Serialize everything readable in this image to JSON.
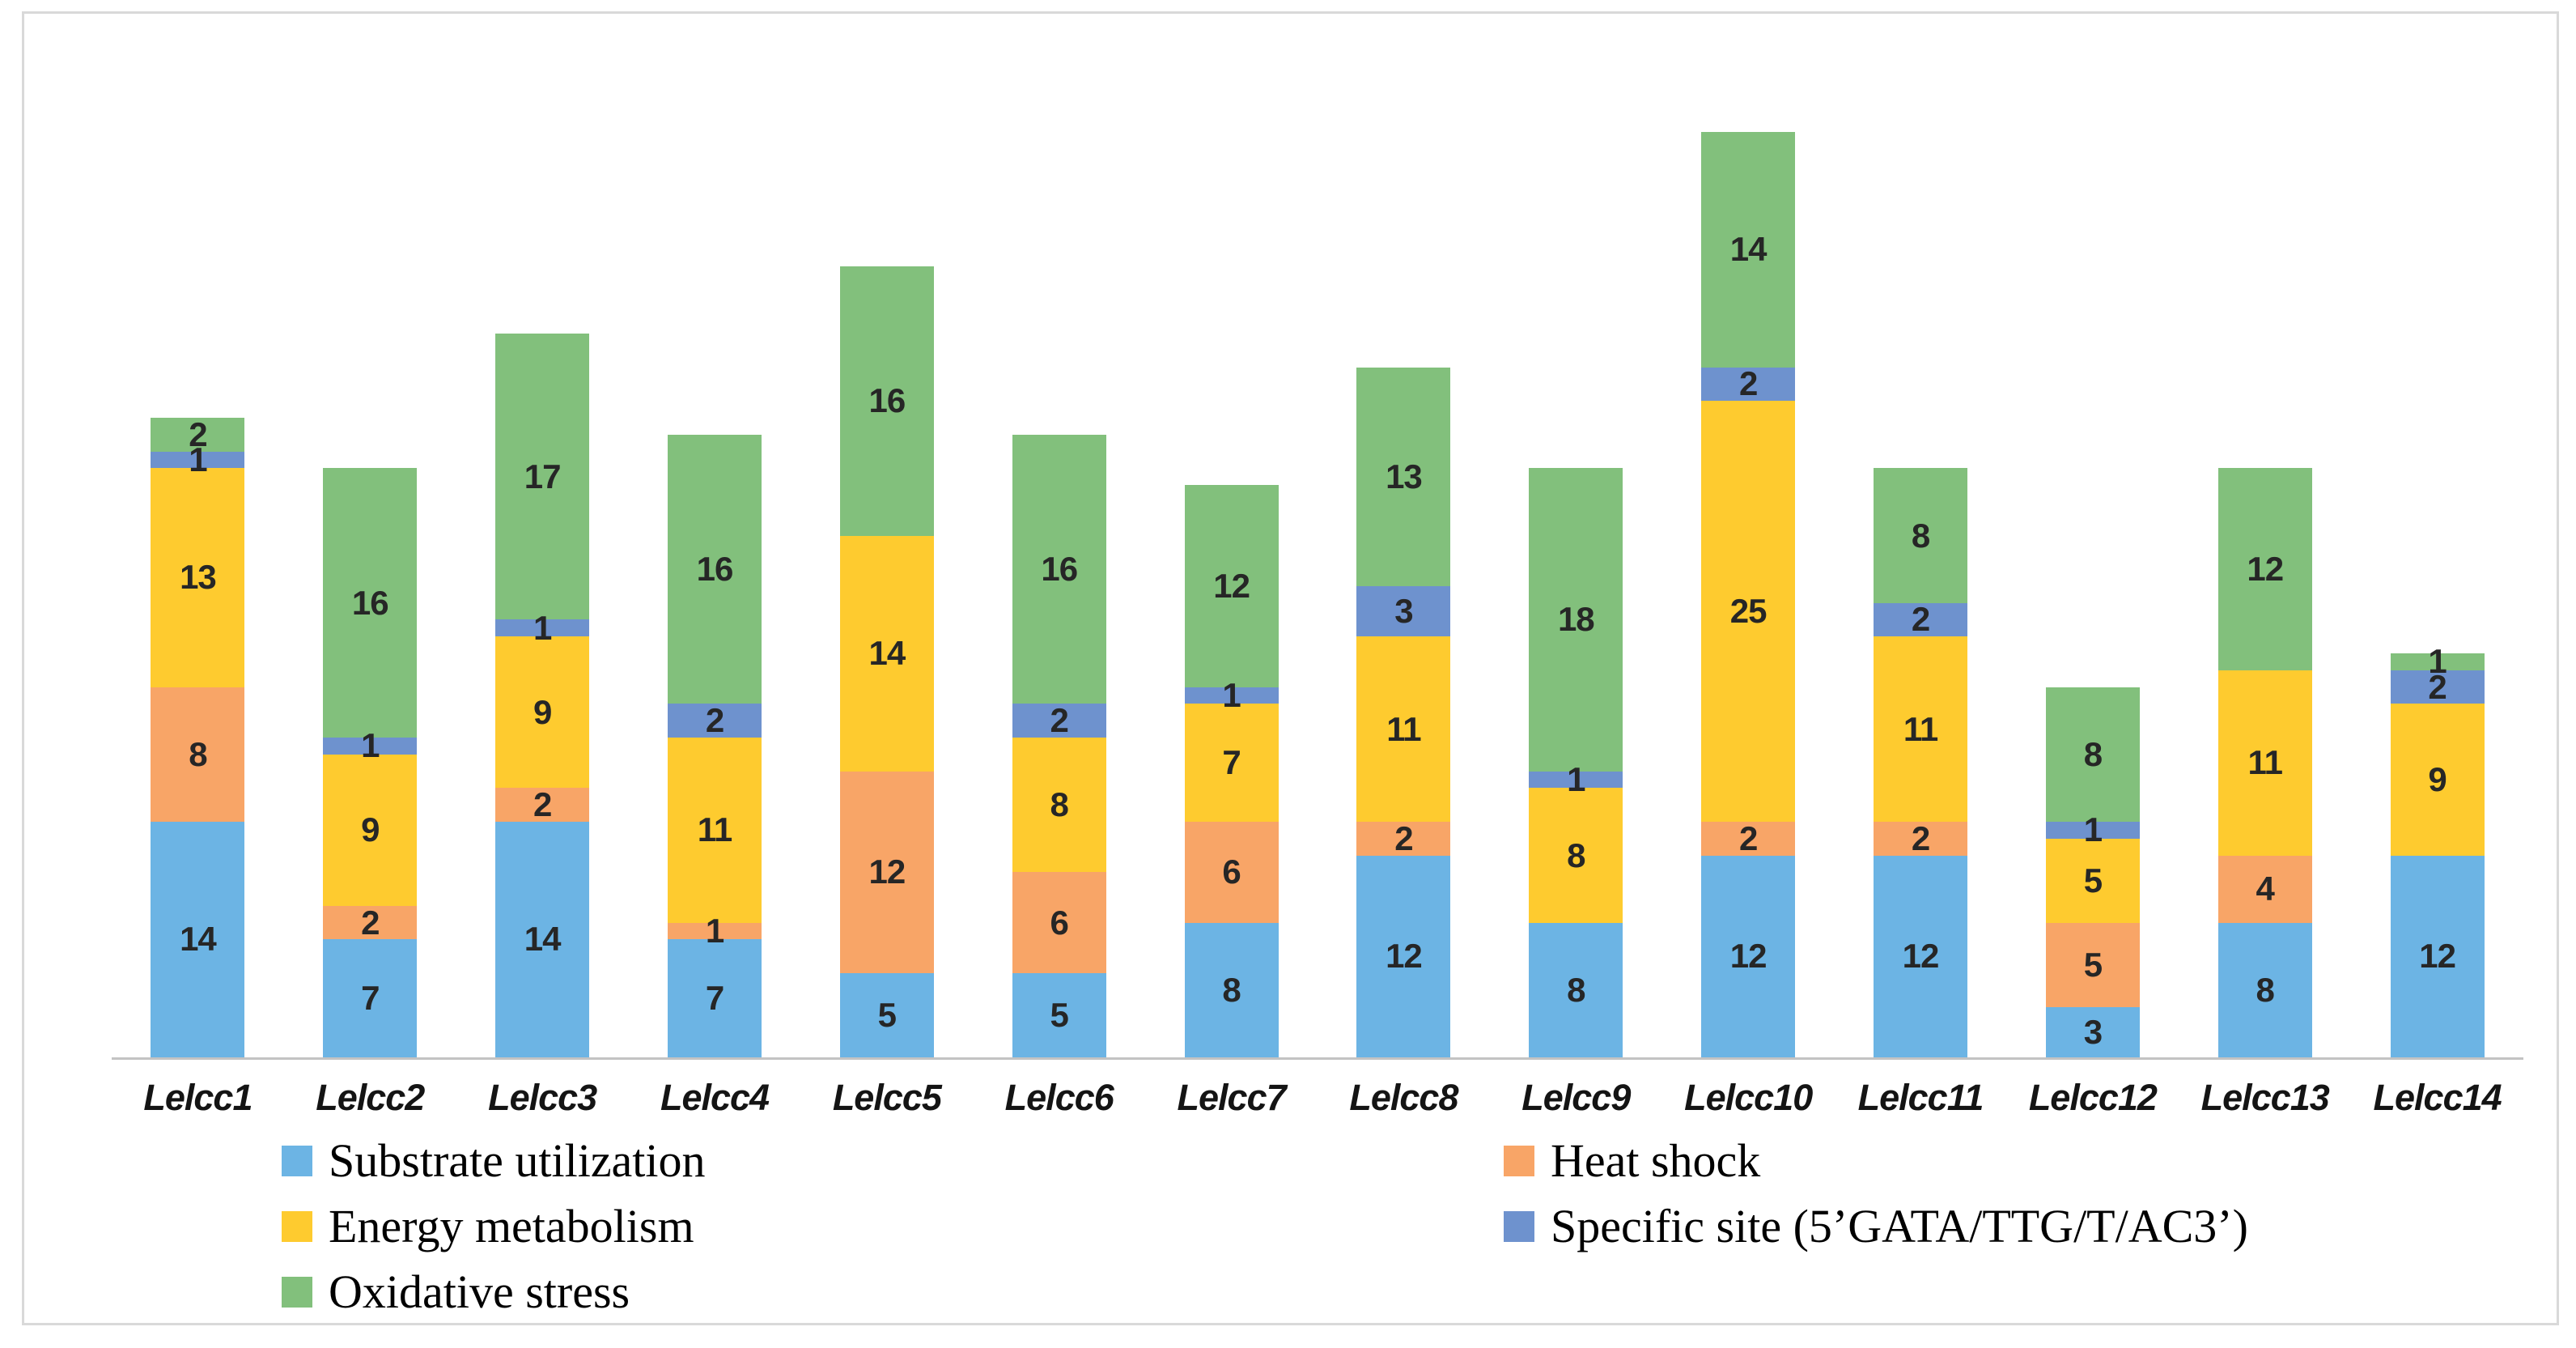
{
  "figure": {
    "background": "#ffffff",
    "frame_border_color": "#d9d9d9",
    "axis_line_color": "#c3c3c3",
    "segment_label_color": "#262626",
    "x_label_color": "#141414"
  },
  "chart_data": {
    "type": "bar",
    "stacked": true,
    "title": "",
    "xlabel": "",
    "ylabel": "",
    "grid": false,
    "y_axis_visible": false,
    "ylim": [
      0,
      62
    ],
    "legend_position": "bottom",
    "categories": [
      "Lelcc1",
      "Lelcc2",
      "Lelcc3",
      "Lelcc4",
      "Lelcc5",
      "Lelcc6",
      "Lelcc7",
      "Lelcc8",
      "Lelcc9",
      "Lelcc10",
      "Lelcc11",
      "Lelcc12",
      "Lelcc13",
      "Lelcc14"
    ],
    "series": [
      {
        "name": "Substrate utilization",
        "color": "#6cb4e4",
        "values": [
          14,
          7,
          14,
          7,
          5,
          5,
          8,
          12,
          8,
          12,
          12,
          3,
          8,
          12
        ]
      },
      {
        "name": "Heat shock",
        "color": "#f8a567",
        "values": [
          8,
          2,
          2,
          1,
          12,
          6,
          6,
          2,
          0,
          2,
          2,
          5,
          4,
          0
        ]
      },
      {
        "name": "Energy metabolism",
        "color": "#fecb2f",
        "values": [
          13,
          9,
          9,
          11,
          14,
          8,
          7,
          11,
          8,
          25,
          11,
          5,
          11,
          9
        ]
      },
      {
        "name": "Specific site (5’GATA/TTG/T/AC3’)",
        "color": "#6e92ce",
        "values": [
          1,
          1,
          1,
          2,
          0,
          2,
          1,
          3,
          1,
          2,
          2,
          1,
          0,
          2
        ]
      },
      {
        "name": "Oxidative stress",
        "color": "#82c07c",
        "values": [
          2,
          16,
          17,
          16,
          16,
          16,
          12,
          13,
          18,
          14,
          8,
          8,
          12,
          1
        ]
      }
    ],
    "bar_totals": [
      38,
      35,
      43,
      37,
      47,
      37,
      34,
      41,
      35,
      55,
      35,
      22,
      35,
      24
    ]
  },
  "legend": {
    "columns": [
      {
        "series_indexes": [
          0,
          2,
          4
        ]
      },
      {
        "series_indexes": [
          1,
          3
        ]
      }
    ]
  }
}
